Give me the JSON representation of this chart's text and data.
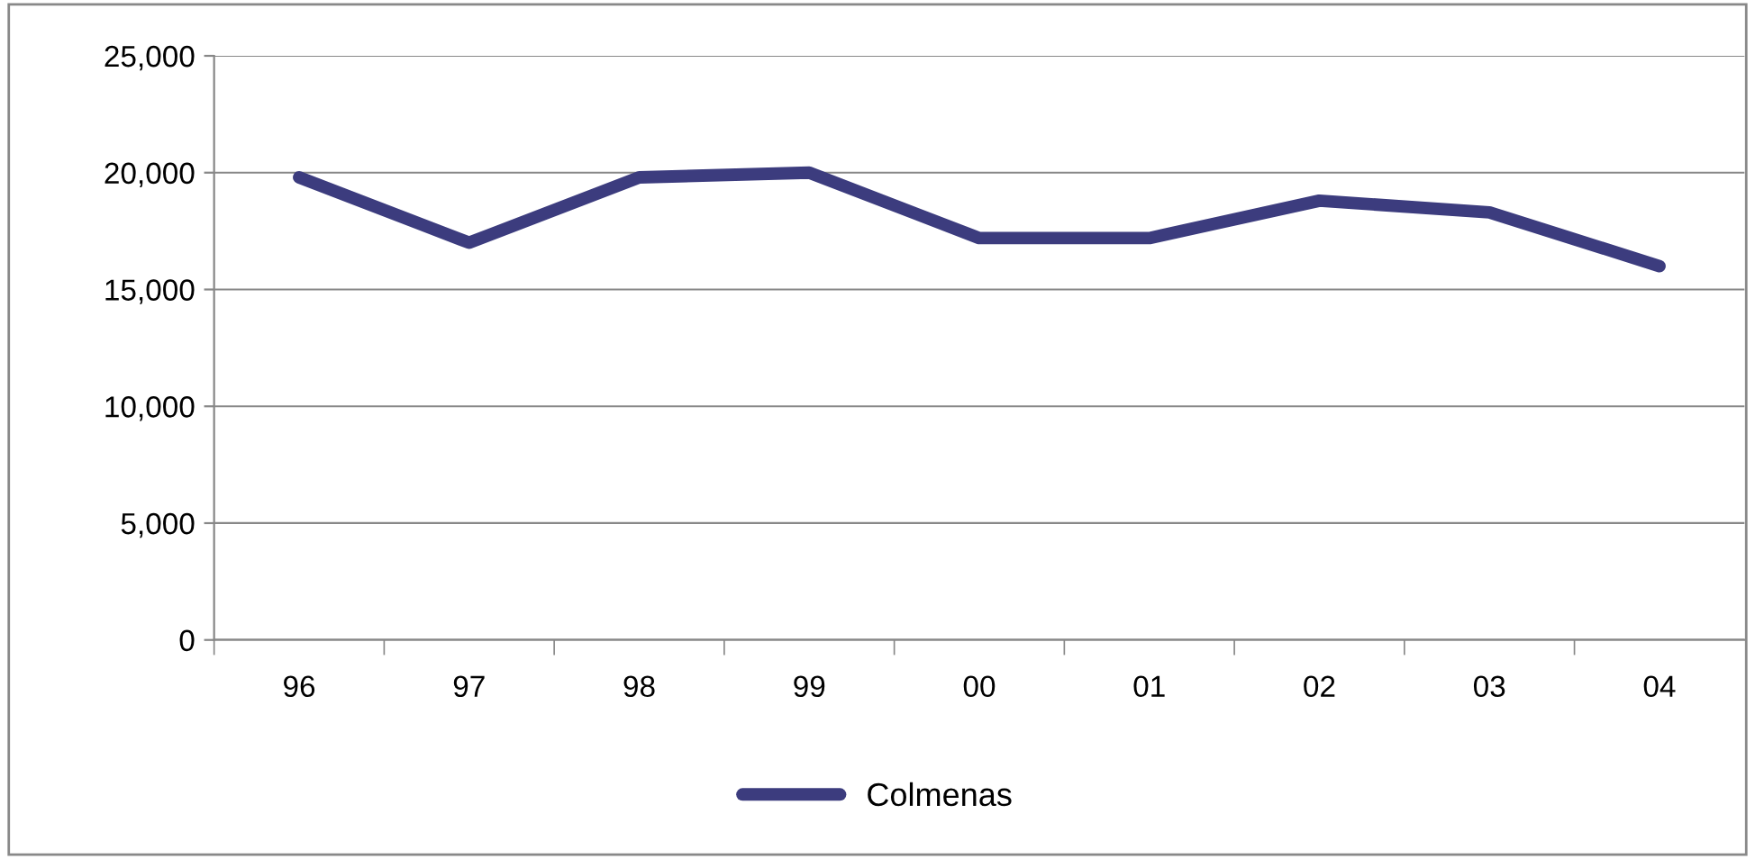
{
  "chart_data": {
    "type": "line",
    "categories": [
      "96",
      "97",
      "98",
      "99",
      "00",
      "01",
      "02",
      "03",
      "04"
    ],
    "series": [
      {
        "name": "Colmenas",
        "color": "#3c3c7e",
        "values": [
          19800,
          17000,
          19800,
          20000,
          17200,
          17200,
          18800,
          18300,
          16000
        ]
      }
    ],
    "ylim": [
      0,
      25000
    ],
    "yticks": [
      {
        "value": 0,
        "label": "0"
      },
      {
        "value": 5000,
        "label": "5,000"
      },
      {
        "value": 10000,
        "label": "10,000"
      },
      {
        "value": 15000,
        "label": "15,000"
      },
      {
        "value": 20000,
        "label": "20,000"
      },
      {
        "value": 25000,
        "label": "25,000"
      }
    ],
    "grid": "y",
    "legend": "bottom",
    "marker": "none",
    "line_style": "solid"
  }
}
